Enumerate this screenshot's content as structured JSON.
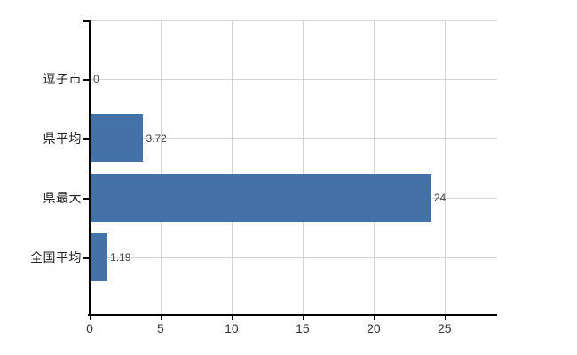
{
  "chart_data": {
    "type": "bar",
    "orientation": "horizontal",
    "title": "",
    "xlabel": "",
    "ylabel": "",
    "categories": [
      "逗子市",
      "県平均",
      "県最大",
      "全国平均"
    ],
    "values": [
      0,
      3.72,
      24,
      1.19
    ],
    "value_labels": [
      "0",
      "3.72",
      "24",
      "1.19"
    ],
    "x_ticks": [
      0,
      5,
      10,
      15,
      20,
      25
    ],
    "xlim": [
      0,
      28.7
    ],
    "grid": true,
    "legend": false,
    "colors": {
      "bar": "#4471a8",
      "grid": "#d6d6d6",
      "axis": "#000000",
      "category_label": "#222222",
      "value_label": "#444444",
      "tick_label": "#333333",
      "background": "#ffffff"
    }
  }
}
